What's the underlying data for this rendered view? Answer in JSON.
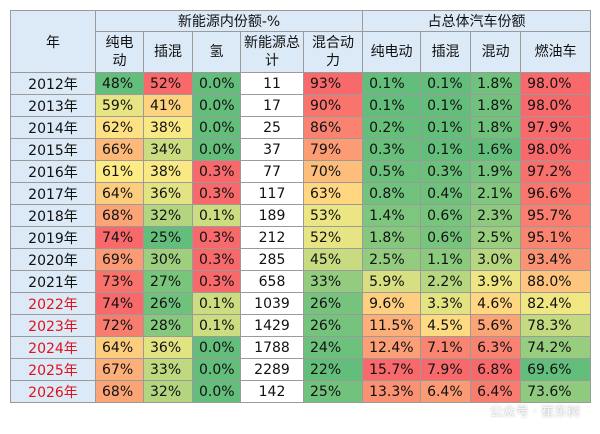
{
  "table": {
    "header": {
      "year": "年",
      "groups": [
        "新能源内份额-%",
        "占总体汽车份额"
      ],
      "columns": [
        "纯电动",
        "插混",
        "氢",
        "新能源总计",
        "混合动力",
        "纯电动",
        "插混",
        "混动",
        "燃油车"
      ]
    },
    "rows": [
      [
        "2012年",
        "48%",
        "52%",
        "0.0%",
        "11",
        "93%",
        "0.1%",
        "0.1%",
        "1.8%",
        "98.0%"
      ],
      [
        "2013年",
        "59%",
        "41%",
        "0.0%",
        "17",
        "90%",
        "0.1%",
        "0.1%",
        "1.8%",
        "98.0%"
      ],
      [
        "2014年",
        "62%",
        "38%",
        "0.0%",
        "25",
        "86%",
        "0.2%",
        "0.1%",
        "1.8%",
        "97.9%"
      ],
      [
        "2015年",
        "66%",
        "34%",
        "0.0%",
        "37",
        "79%",
        "0.3%",
        "0.1%",
        "1.6%",
        "98.0%"
      ],
      [
        "2016年",
        "61%",
        "38%",
        "0.3%",
        "77",
        "70%",
        "0.5%",
        "0.3%",
        "1.9%",
        "97.2%"
      ],
      [
        "2017年",
        "64%",
        "36%",
        "0.3%",
        "117",
        "63%",
        "0.8%",
        "0.4%",
        "2.1%",
        "96.6%"
      ],
      [
        "2018年",
        "68%",
        "32%",
        "0.1%",
        "189",
        "53%",
        "1.4%",
        "0.6%",
        "2.3%",
        "95.7%"
      ],
      [
        "2019年",
        "74%",
        "25%",
        "0.3%",
        "212",
        "52%",
        "1.8%",
        "0.6%",
        "2.5%",
        "95.1%"
      ],
      [
        "2020年",
        "69%",
        "30%",
        "0.3%",
        "285",
        "45%",
        "2.5%",
        "1.1%",
        "3.0%",
        "93.4%"
      ],
      [
        "2021年",
        "73%",
        "27%",
        "0.3%",
        "658",
        "33%",
        "5.9%",
        "2.2%",
        "3.9%",
        "88.0%"
      ],
      [
        "2022年",
        "74%",
        "26%",
        "0.1%",
        "1039",
        "26%",
        "9.6%",
        "3.3%",
        "4.6%",
        "82.4%"
      ],
      [
        "2023年",
        "72%",
        "28%",
        "0.1%",
        "1429",
        "26%",
        "11.5%",
        "4.5%",
        "5.6%",
        "78.3%"
      ],
      [
        "2024年",
        "64%",
        "36%",
        "0.0%",
        "1788",
        "24%",
        "12.4%",
        "7.1%",
        "6.3%",
        "74.2%"
      ],
      [
        "2025年",
        "67%",
        "33%",
        "0.0%",
        "2289",
        "22%",
        "15.7%",
        "7.9%",
        "6.8%",
        "69.6%"
      ],
      [
        "2026年",
        "68%",
        "32%",
        "0.0%",
        "142",
        "25%",
        "13.3%",
        "6.4%",
        "6.4%",
        "73.6%"
      ]
    ]
  },
  "watermark": "公众号 · 崔东树"
}
